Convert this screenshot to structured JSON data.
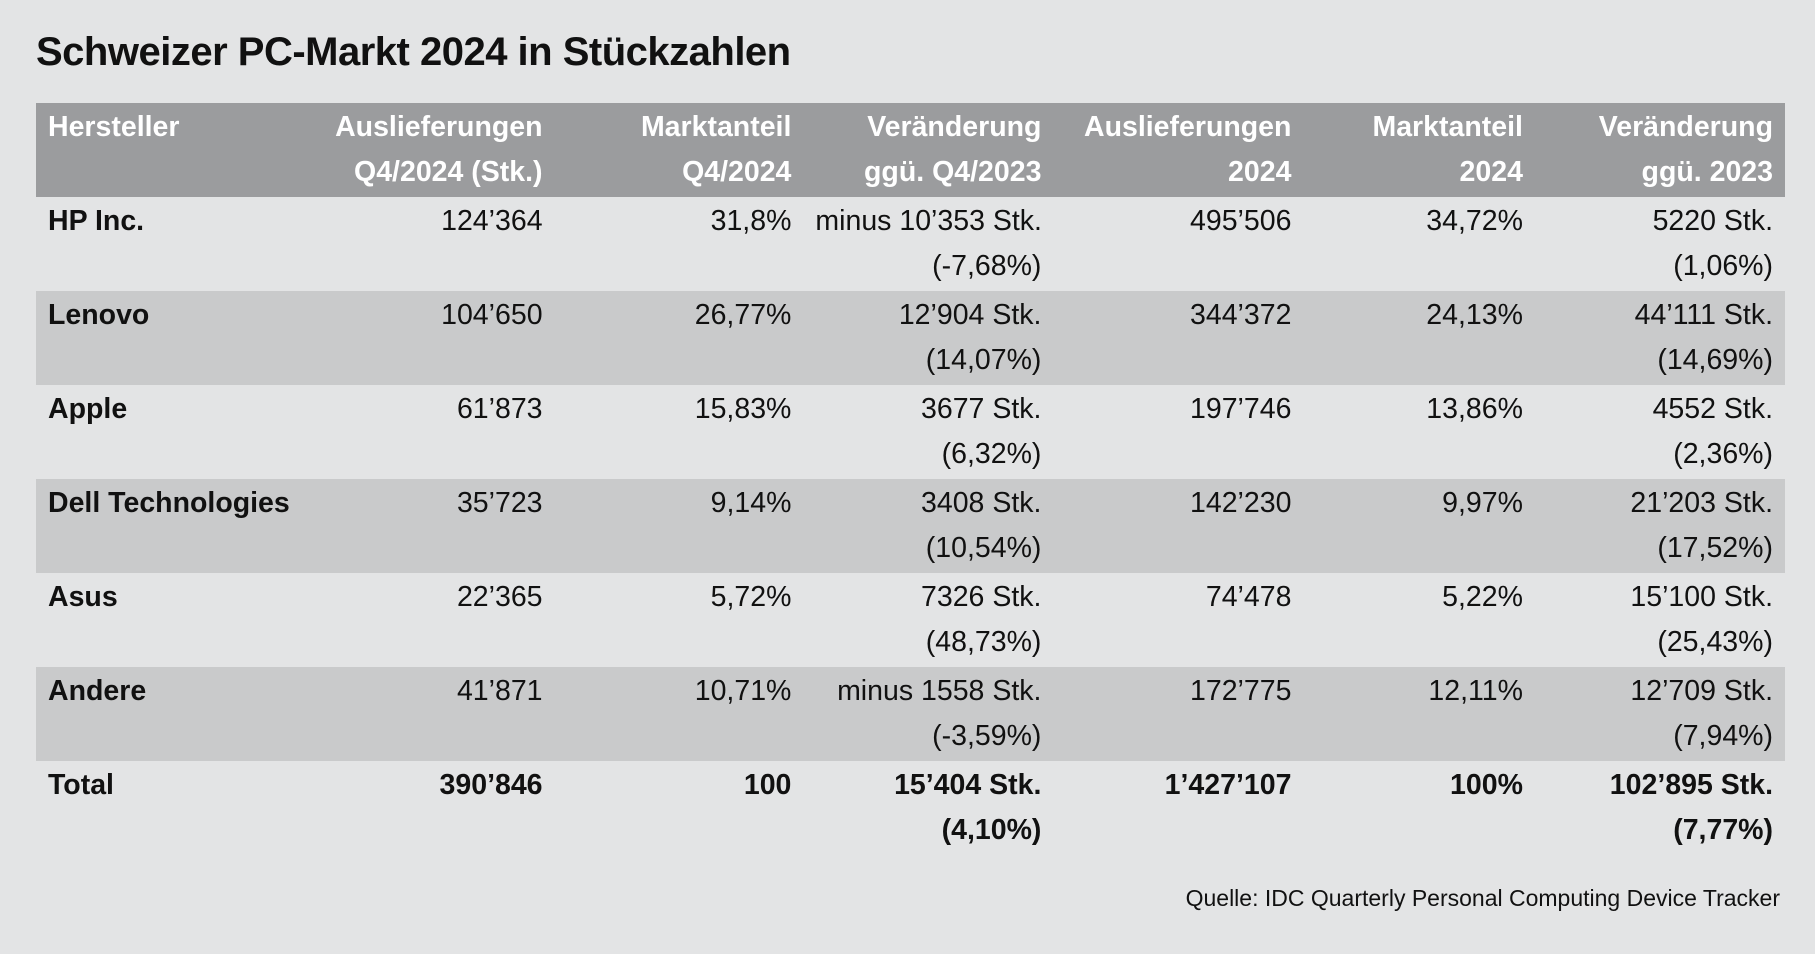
{
  "title": "Schweizer PC-Markt 2024 in Stückzahlen",
  "source": "Quelle: IDC Quarterly Personal Computing Device Tracker",
  "colors": {
    "header_bg": "#9b9c9e",
    "header_text": "#ffffff",
    "row_shade": "#c9cacb",
    "background": "#e3e4e5"
  },
  "chart_data": {
    "type": "table",
    "title": "Schweizer PC-Markt 2024 in Stückzahlen",
    "columns": [
      [
        "Hersteller",
        ""
      ],
      [
        "Auslieferungen",
        "Q4/2024 (Stk.)"
      ],
      [
        "Marktanteil",
        "Q4/2024"
      ],
      [
        "Veränderung",
        "ggü. Q4/2023"
      ],
      [
        "Auslieferungen",
        "2024"
      ],
      [
        "Marktanteil",
        "2024"
      ],
      [
        "Veränderung",
        "ggü. 2023"
      ]
    ],
    "rows": [
      {
        "cells": [
          [
            "HP Inc."
          ],
          [
            "124’364"
          ],
          [
            "31,8%"
          ],
          [
            "minus 10’353 Stk.",
            "(-7,68%)"
          ],
          [
            "495’506"
          ],
          [
            "34,72%"
          ],
          [
            "5220 Stk.",
            "(1,06%)"
          ]
        ]
      },
      {
        "cells": [
          [
            "Lenovo"
          ],
          [
            "104’650"
          ],
          [
            "26,77%"
          ],
          [
            "12’904 Stk.",
            "(14,07%)"
          ],
          [
            "344’372"
          ],
          [
            "24,13%"
          ],
          [
            "44’111 Stk.",
            "(14,69%)"
          ]
        ]
      },
      {
        "cells": [
          [
            "Apple"
          ],
          [
            "61’873"
          ],
          [
            "15,83%"
          ],
          [
            "3677 Stk.",
            "(6,32%)"
          ],
          [
            "197’746"
          ],
          [
            "13,86%"
          ],
          [
            "4552 Stk.",
            "(2,36%)"
          ]
        ]
      },
      {
        "cells": [
          [
            "Dell Technologies"
          ],
          [
            "35’723"
          ],
          [
            "9,14%"
          ],
          [
            "3408 Stk.",
            "(10,54%)"
          ],
          [
            "142’230"
          ],
          [
            "9,97%"
          ],
          [
            "21’203 Stk.",
            "(17,52%)"
          ]
        ]
      },
      {
        "cells": [
          [
            "Asus"
          ],
          [
            "22’365"
          ],
          [
            "5,72%"
          ],
          [
            "7326 Stk.",
            "(48,73%)"
          ],
          [
            "74’478"
          ],
          [
            "5,22%"
          ],
          [
            "15’100 Stk.",
            "(25,43%)"
          ]
        ]
      },
      {
        "cells": [
          [
            "Andere"
          ],
          [
            "41’871"
          ],
          [
            "10,71%"
          ],
          [
            "minus 1558 Stk.",
            "(-3,59%)"
          ],
          [
            "172’775"
          ],
          [
            "12,11%"
          ],
          [
            "12’709 Stk.",
            "(7,94%)"
          ]
        ]
      },
      {
        "cells": [
          [
            "Total"
          ],
          [
            "390’846"
          ],
          [
            "100"
          ],
          [
            "15’404 Stk.",
            "(4,10%)"
          ],
          [
            "1’427’107"
          ],
          [
            "100%"
          ],
          [
            "102’895 Stk.",
            "(7,77%)"
          ]
        ]
      }
    ]
  }
}
